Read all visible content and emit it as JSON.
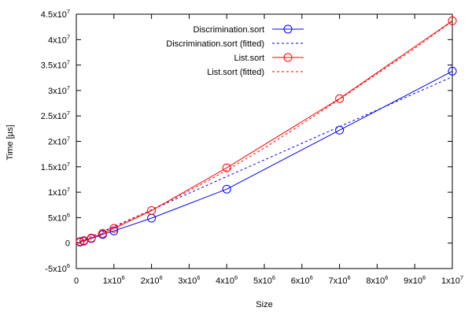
{
  "chart_data": {
    "type": "line",
    "xlabel": "Size",
    "ylabel": "Time [µs]",
    "xlim": [
      0,
      10000000
    ],
    "ylim": [
      -5000000,
      45000000
    ],
    "grid": false,
    "legend_position": "top-right",
    "x_ticks": [
      {
        "value": 0,
        "mant": "0",
        "exp": ""
      },
      {
        "value": 1000000,
        "mant": "1x10",
        "exp": "6"
      },
      {
        "value": 2000000,
        "mant": "2x10",
        "exp": "6"
      },
      {
        "value": 3000000,
        "mant": "3x10",
        "exp": "6"
      },
      {
        "value": 4000000,
        "mant": "4x10",
        "exp": "6"
      },
      {
        "value": 5000000,
        "mant": "5x10",
        "exp": "6"
      },
      {
        "value": 6000000,
        "mant": "6x10",
        "exp": "6"
      },
      {
        "value": 7000000,
        "mant": "7x10",
        "exp": "6"
      },
      {
        "value": 8000000,
        "mant": "8x10",
        "exp": "6"
      },
      {
        "value": 9000000,
        "mant": "9x10",
        "exp": "6"
      },
      {
        "value": 10000000,
        "mant": "1x10",
        "exp": "7"
      }
    ],
    "y_ticks": [
      {
        "value": -5000000,
        "mant": "-5x10",
        "exp": "6"
      },
      {
        "value": 0,
        "mant": "0",
        "exp": ""
      },
      {
        "value": 5000000,
        "mant": "5x10",
        "exp": "6"
      },
      {
        "value": 10000000,
        "mant": "1x10",
        "exp": "7"
      },
      {
        "value": 15000000,
        "mant": "1.5x10",
        "exp": "7"
      },
      {
        "value": 20000000,
        "mant": "2x10",
        "exp": "7"
      },
      {
        "value": 25000000,
        "mant": "2.5x10",
        "exp": "7"
      },
      {
        "value": 30000000,
        "mant": "3x10",
        "exp": "7"
      },
      {
        "value": 35000000,
        "mant": "3.5x10",
        "exp": "7"
      },
      {
        "value": 40000000,
        "mant": "4x10",
        "exp": "7"
      },
      {
        "value": 45000000,
        "mant": "4.5x10",
        "exp": "7"
      }
    ],
    "series": [
      {
        "name": "Discrimination.sort",
        "color": "#0000ff",
        "style": "line-circles",
        "x": [
          100000,
          200000,
          400000,
          700000,
          1000000,
          2000000,
          4000000,
          7000000,
          10000000
        ],
        "y": [
          200000,
          400000,
          900000,
          1700000,
          2400000,
          4900000,
          10600000,
          22200000,
          33800000
        ]
      },
      {
        "name": "Discrimination.sort (fitted)",
        "color": "#0000ff",
        "style": "dashed",
        "x": [
          0,
          10000000
        ],
        "y": [
          0,
          32700000
        ]
      },
      {
        "name": "List.sort",
        "color": "#ff0000",
        "style": "line-circles",
        "x": [
          100000,
          200000,
          400000,
          700000,
          1000000,
          2000000,
          4000000,
          7000000,
          10000000
        ],
        "y": [
          300000,
          500000,
          1000000,
          1900000,
          2900000,
          6400000,
          14800000,
          28400000,
          43700000
        ]
      },
      {
        "name": "List.sort (fitted)",
        "color": "#ff0000",
        "style": "dashed",
        "x": [
          0,
          1000000,
          2000000,
          3000000,
          4000000,
          5000000,
          6000000,
          7000000,
          8000000,
          9000000,
          10000000
        ],
        "y": [
          0,
          3150000,
          6550000,
          10300000,
          14300000,
          18700000,
          23400000,
          28300000,
          33300000,
          38300000,
          43600000
        ]
      }
    ]
  }
}
